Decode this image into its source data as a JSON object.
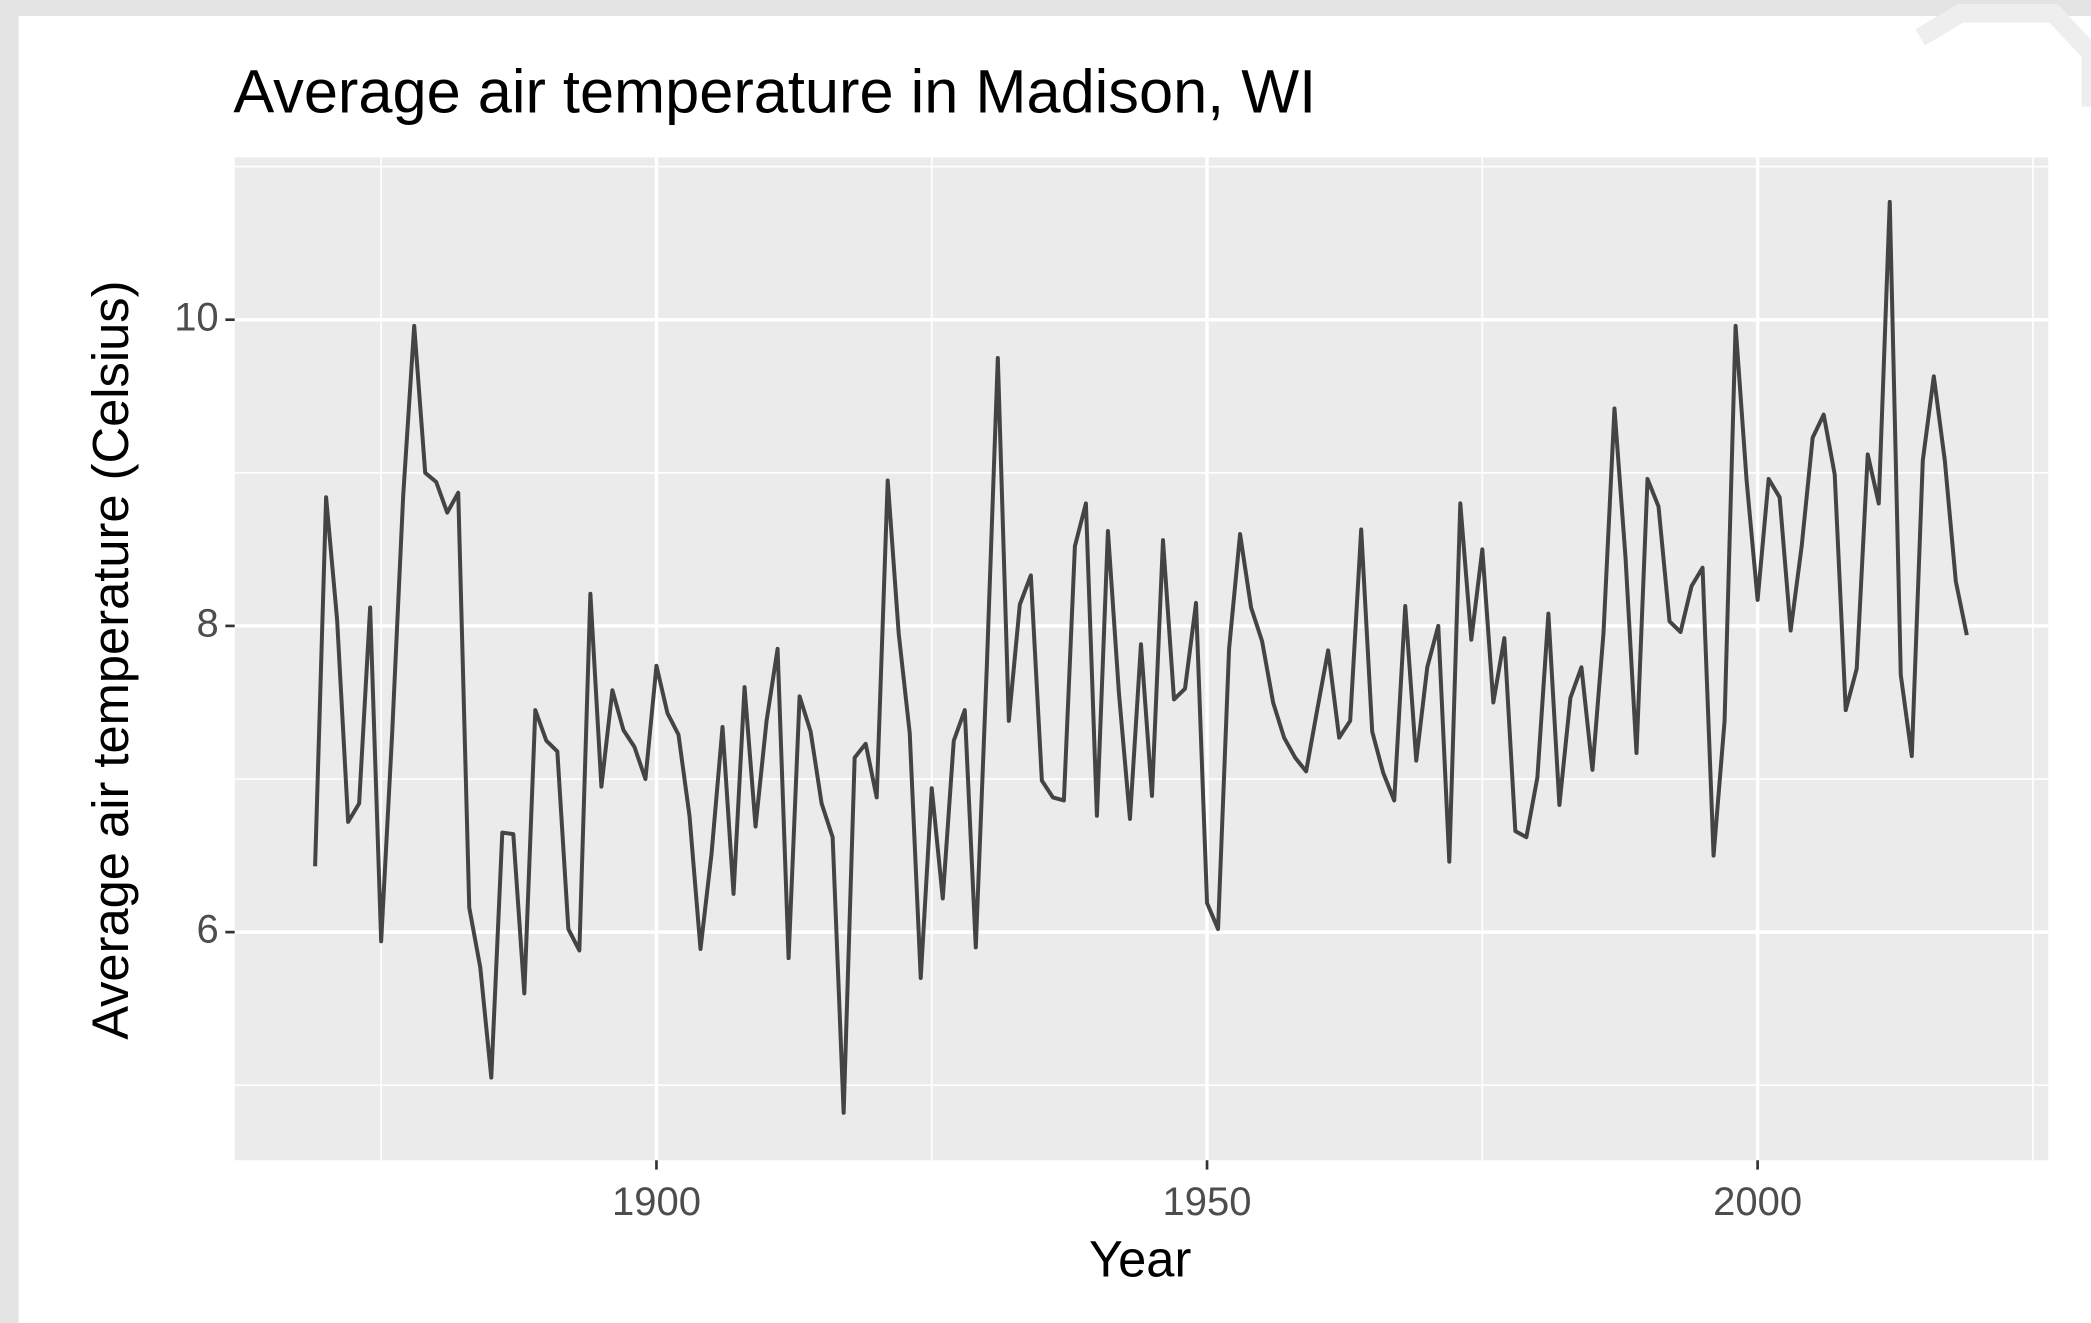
{
  "chart_data": {
    "type": "line",
    "title": "Average air temperature in Madison, WI",
    "x_label": "Year",
    "y_label": "Average air temperature (Celsius)",
    "x": [
      1869,
      1870,
      1871,
      1872,
      1873,
      1874,
      1875,
      1876,
      1877,
      1878,
      1879,
      1880,
      1881,
      1882,
      1883,
      1884,
      1885,
      1886,
      1887,
      1888,
      1889,
      1890,
      1891,
      1892,
      1893,
      1894,
      1895,
      1896,
      1897,
      1898,
      1899,
      1900,
      1901,
      1902,
      1903,
      1904,
      1905,
      1906,
      1907,
      1908,
      1909,
      1910,
      1911,
      1912,
      1913,
      1914,
      1915,
      1916,
      1917,
      1918,
      1919,
      1920,
      1921,
      1922,
      1923,
      1924,
      1925,
      1926,
      1927,
      1928,
      1929,
      1930,
      1931,
      1932,
      1933,
      1934,
      1935,
      1936,
      1937,
      1938,
      1939,
      1940,
      1941,
      1942,
      1943,
      1944,
      1945,
      1946,
      1947,
      1948,
      1949,
      1950,
      1951,
      1952,
      1953,
      1954,
      1955,
      1956,
      1957,
      1958,
      1959,
      1960,
      1961,
      1962,
      1963,
      1964,
      1965,
      1966,
      1967,
      1968,
      1969,
      1970,
      1971,
      1972,
      1973,
      1974,
      1975,
      1976,
      1977,
      1978,
      1979,
      1980,
      1981,
      1982,
      1983,
      1984,
      1985,
      1986,
      1987,
      1988,
      1989,
      1990,
      1991,
      1992,
      1993,
      1994,
      1995,
      1996,
      1997,
      1998,
      1999,
      2000,
      2001,
      2002,
      2003,
      2004,
      2005,
      2006,
      2007,
      2008,
      2009,
      2010,
      2011,
      2012,
      2013,
      2014,
      2015,
      2016,
      2017,
      2018,
      2019
    ],
    "series": [
      {
        "name": "Average air temperature",
        "color": "#444444",
        "values": [
          6.43,
          8.84,
          8.04,
          6.72,
          6.84,
          8.12,
          5.94,
          7.3,
          8.85,
          9.96,
          9.0,
          8.94,
          8.74,
          8.87,
          6.16,
          5.77,
          5.05,
          6.65,
          6.64,
          5.6,
          7.45,
          7.25,
          7.18,
          6.02,
          5.88,
          8.21,
          6.95,
          7.58,
          7.32,
          7.21,
          7.0,
          7.74,
          7.43,
          7.29,
          6.76,
          5.89,
          6.51,
          7.34,
          6.25,
          7.6,
          6.69,
          7.38,
          7.85,
          5.83,
          7.54,
          7.31,
          6.84,
          6.62,
          4.82,
          7.14,
          7.23,
          6.88,
          8.95,
          7.95,
          7.3,
          5.7,
          6.94,
          6.22,
          7.25,
          7.45,
          5.9,
          7.73,
          9.75,
          7.38,
          8.14,
          8.33,
          6.99,
          6.88,
          6.86,
          8.52,
          8.8,
          6.76,
          8.62,
          7.56,
          6.74,
          7.88,
          6.89,
          8.56,
          7.52,
          7.59,
          8.15,
          6.19,
          6.02,
          7.85,
          8.6,
          8.12,
          7.9,
          7.5,
          7.27,
          7.14,
          7.05,
          7.45,
          7.84,
          7.27,
          7.38,
          8.63,
          7.31,
          7.04,
          6.86,
          8.13,
          7.12,
          7.73,
          8.0,
          6.46,
          8.8,
          7.91,
          8.5,
          7.5,
          7.92,
          6.66,
          6.62,
          7.01,
          8.08,
          6.83,
          7.53,
          7.73,
          7.06,
          7.95,
          9.42,
          8.45,
          7.17,
          8.96,
          8.78,
          8.03,
          7.96,
          8.26,
          8.38,
          6.5,
          7.38,
          9.96,
          8.95,
          8.17,
          8.96,
          8.84,
          7.97,
          8.52,
          9.23,
          9.38,
          8.99,
          7.45,
          7.72,
          9.12,
          8.8,
          10.77,
          7.68,
          7.15,
          9.08,
          9.63,
          9.08,
          8.29,
          7.94
        ]
      }
    ],
    "xlim": [
      1861.7,
      2026.4
    ],
    "ylim": [
      4.51,
      11.06
    ],
    "xticks": [
      1900,
      1950,
      2000
    ],
    "yticks": [
      6,
      8,
      10
    ],
    "x_minor_grid": [
      1875,
      1925,
      1975,
      2025
    ],
    "y_minor_grid": [
      5,
      7,
      9,
      11
    ],
    "grid": true
  }
}
